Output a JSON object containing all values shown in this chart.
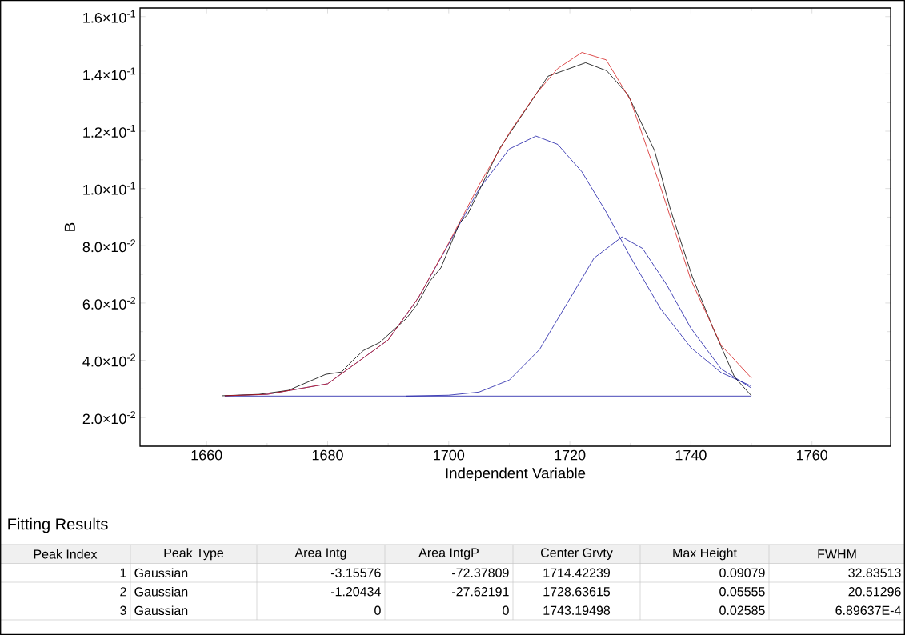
{
  "chart_data": {
    "type": "line",
    "xlabel": "Independent Variable",
    "ylabel": "B",
    "xlim": [
      1649,
      1773
    ],
    "ylim": [
      0.01,
      0.163
    ],
    "xticks": [
      1660,
      1680,
      1700,
      1720,
      1740,
      1760
    ],
    "yticks": [
      {
        "value": 0.02,
        "label": "2.0×10$^{-2}$"
      },
      {
        "value": 0.04,
        "label": "4.0×10$^{-2}$"
      },
      {
        "value": 0.06,
        "label": "6.0×10$^{-2}$"
      },
      {
        "value": 0.08,
        "label": "8.0×10$^{-2}$"
      },
      {
        "value": 0.1,
        "label": "1.0×10$^{-1}$"
      },
      {
        "value": 0.12,
        "label": "1.2×10$^{-1}$"
      },
      {
        "value": 0.14,
        "label": "1.4×10$^{-1}$"
      },
      {
        "value": 0.16,
        "label": "1.6×10$^{-1}$"
      }
    ],
    "series": [
      {
        "color": "#1a1aa6",
        "x": [
          1663,
          1750
        ],
        "values": [
          0.0275,
          0.0275
        ]
      },
      {
        "color": "#1a1aa6",
        "x": [
          1663,
          1670,
          1680,
          1690,
          1695,
          1700,
          1705,
          1710,
          1714.4,
          1718,
          1722,
          1726,
          1730,
          1735,
          1740,
          1745,
          1750
        ],
        "values": [
          0.0276,
          0.0281,
          0.0318,
          0.0471,
          0.0619,
          0.0807,
          0.0998,
          0.1138,
          0.1183,
          0.1154,
          0.1058,
          0.0918,
          0.0761,
          0.058,
          0.0444,
          0.0357,
          0.031
        ]
      },
      {
        "color": "#1a1aa6",
        "x": [
          1693,
          1700,
          1705,
          1710,
          1715,
          1720,
          1724,
          1728.6,
          1732,
          1736,
          1740,
          1745,
          1750
        ],
        "values": [
          0.0275,
          0.0278,
          0.0289,
          0.0331,
          0.0438,
          0.0615,
          0.0757,
          0.0831,
          0.0791,
          0.0664,
          0.0512,
          0.037,
          0.0303
        ]
      },
      {
        "color": "#000000",
        "x": [
          1662.5,
          1668.7,
          1673.5,
          1679.7,
          1682.3,
          1684.1,
          1685.9,
          1688.6,
          1693,
          1694.7,
          1696.9,
          1698.7,
          1701.8,
          1703.1,
          1708.4,
          1712,
          1716.4,
          1722.6,
          1726.1,
          1729.6,
          1734,
          1736.6,
          1740.2,
          1743.7,
          1747.2,
          1750
        ],
        "values": [
          0.0276,
          0.0281,
          0.0295,
          0.0351,
          0.0359,
          0.0398,
          0.0434,
          0.0462,
          0.0546,
          0.0593,
          0.0677,
          0.0723,
          0.088,
          0.0909,
          0.114,
          0.1253,
          0.1392,
          0.1439,
          0.1411,
          0.1327,
          0.1132,
          0.0928,
          0.0694,
          0.051,
          0.0342,
          0.0276
        ]
      },
      {
        "color": "#d42020",
        "x": [
          1663,
          1670,
          1680,
          1690,
          1695,
          1700,
          1705,
          1710,
          1714.4,
          1718,
          1722,
          1726,
          1730,
          1735,
          1740,
          1745,
          1750
        ],
        "values": [
          0.0276,
          0.0281,
          0.0318,
          0.0471,
          0.0619,
          0.081,
          0.1012,
          0.1194,
          0.133,
          0.1419,
          0.1475,
          0.1449,
          0.1309,
          0.1004,
          0.0681,
          0.0452,
          0.0338
        ]
      }
    ],
    "annotations": [
      "Fitting Results",
      "Peak Index",
      "Peak Type",
      "Area Intg",
      "Area IntgP",
      "Center Grvty",
      "Max Height",
      "FWHM",
      "1",
      "Gaussian",
      "-3.15576",
      "-72.37809",
      "1714.42239",
      "0.09079",
      "32.83513",
      "2",
      "Gaussian",
      "-1.20434",
      "-27.62191",
      "1728.63615",
      "0.05555",
      "20.51296",
      "3",
      "Gaussian",
      "0",
      "0",
      "1743.19498",
      "0.02585",
      "6.89637E-4"
    ]
  }
}
